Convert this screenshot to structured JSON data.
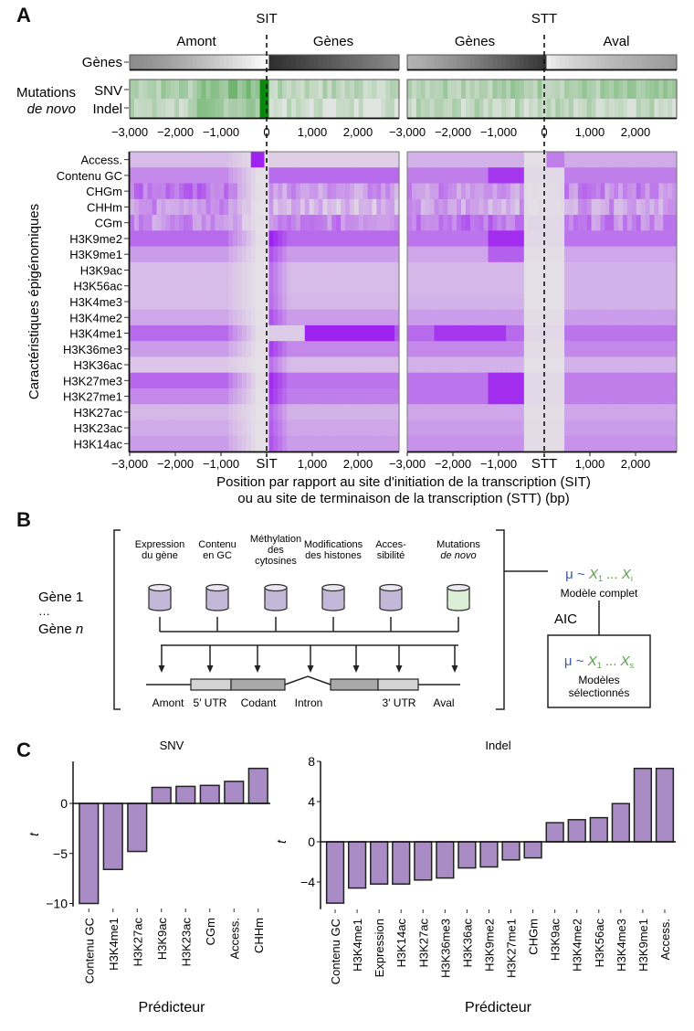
{
  "panels": {
    "a": {
      "letter": "A",
      "site_labels": [
        "SIT",
        "STT"
      ],
      "region_labels": [
        "Amont",
        "Gènes",
        "Gènes",
        "Aval"
      ],
      "genes_row_label": "Gènes",
      "mutations_label_line1": "Mutations",
      "mutations_label_line2": "de novo",
      "mutation_rows": [
        "SNV",
        "Indel"
      ],
      "top_ticks_left": [
        "−3,000",
        "−2,000",
        "−1,000",
        "0",
        "1,000",
        "2,000"
      ],
      "top_ticks_right": [
        "−3,000",
        "−2,000",
        "−1,000",
        "0",
        "1,000",
        "2,000"
      ],
      "bottom_ticks_left": [
        "−3,000",
        "−2,000",
        "−1,000",
        "SIT",
        "1,000",
        "2,000"
      ],
      "bottom_ticks_right": [
        "−3,000",
        "−2,000",
        "−1,000",
        "STT",
        "1,000",
        "2,000"
      ],
      "y_axis_title": "Caractéristiques épigénomiques",
      "x_axis_title_line1": "Position par rapport au site d'initiation de la transcription (SIT)",
      "x_axis_title_line2": "ou au site de terminaison de la transcription (STT) (bp)",
      "features": [
        "Access.",
        "Contenu GC",
        "CHGm",
        "CHHm",
        "CGm",
        "H3K9me2",
        "H3K9me1",
        "H3K9ac",
        "H3K56ac",
        "H3K4me3",
        "H3K4me2",
        "H3K4me1",
        "H3K36me3",
        "H3K36ac",
        "H3K27me3",
        "H3K27me1",
        "H3K27ac",
        "H3K23ac",
        "H3K14ac"
      ],
      "colors": {
        "heat_low": "#e6e3e6",
        "heat_high": "#9a19f0",
        "mut_low": "#e4e6e4",
        "mut_high": "#0a8a0a"
      }
    },
    "b": {
      "letter": "B",
      "gene_label_1": "Gène 1",
      "gene_label_dots": "…",
      "gene_label_n_prefix": "Gène ",
      "gene_label_n_italic": "n",
      "data_sources": [
        {
          "line1": "Expression",
          "line2": "du gène",
          "line3": "",
          "color": "#c3b8d8"
        },
        {
          "line1": "Contenu",
          "line2": "en GC",
          "line3": "",
          "color": "#c3b8d8"
        },
        {
          "line1": "Méthylation",
          "line2": "des",
          "line3": "cytosines",
          "color": "#c3b8d8"
        },
        {
          "line1": "Modifications",
          "line2": "des histones",
          "line3": "",
          "color": "#c3b8d8"
        },
        {
          "line1": "Acces-",
          "line2": "sibilité",
          "line3": "",
          "color": "#c3b8d8"
        },
        {
          "line1": "Mutations",
          "line2": "de novo",
          "line3": "",
          "color": "#dcefd6"
        }
      ],
      "gene_regions": [
        "Amont",
        "5′ UTR",
        "Codant",
        "Intron",
        "3′ UTR",
        "Aval"
      ],
      "full_model": {
        "mu": "μ ~ ",
        "x_terms": "X",
        "sub1": "1",
        "dots": " ... ",
        "sub_last": "i",
        "label": "Modèle complet"
      },
      "aic_label": "AIC",
      "selected_model": {
        "mu": "μ ~ ",
        "sub1": "1",
        "dots": " ... ",
        "sub_last": "s",
        "label_line1": "Modèles",
        "label_line2": "sélectionnés"
      },
      "colors": {
        "mu": "#3b5ba8",
        "x": "#5aa04a"
      }
    },
    "c": {
      "letter": "C"
    }
  },
  "chart_data": [
    {
      "type": "bar",
      "title": "SNV",
      "xlabel": "Prédicteur",
      "ylabel": "t",
      "categories": [
        "Contenu GC",
        "H3K4me1",
        "H3K27ac",
        "H3K9ac",
        "H3K23ac",
        "CGm",
        "Access.",
        "CHHm"
      ],
      "values": [
        -10.0,
        -6.6,
        -4.8,
        1.6,
        1.7,
        1.8,
        2.2,
        3.5
      ],
      "yticks": [
        0,
        -5,
        -10
      ],
      "ytick_labels": [
        "0",
        "−5",
        "−10"
      ],
      "ylim": [
        -10.3,
        4.2
      ],
      "bar_color": "#a98bc6",
      "grid": false
    },
    {
      "type": "bar",
      "title": "Indel",
      "xlabel": "Prédicteur",
      "ylabel": "t",
      "categories": [
        "Contenu GC",
        "H3K4me1",
        "Expression",
        "H3K14ac",
        "H3K27ac",
        "H3K36me3",
        "H3K36ac",
        "H3K9me2",
        "H3K27me1",
        "CHGm",
        "H3K9ac",
        "H3K4me2",
        "H3K56ac",
        "H3K4me3",
        "H3K9me1",
        "Access."
      ],
      "values": [
        -6.1,
        -4.6,
        -4.2,
        -4.2,
        -3.8,
        -3.6,
        -2.6,
        -2.5,
        -1.8,
        -1.6,
        1.9,
        2.2,
        2.4,
        3.8,
        7.3,
        7.3
      ],
      "yticks": [
        8,
        4,
        0,
        -4
      ],
      "ytick_labels": [
        "8",
        "4",
        "0",
        "−4"
      ],
      "ylim": [
        -6.7,
        8
      ],
      "bar_color": "#a98bc6",
      "grid": false
    }
  ]
}
